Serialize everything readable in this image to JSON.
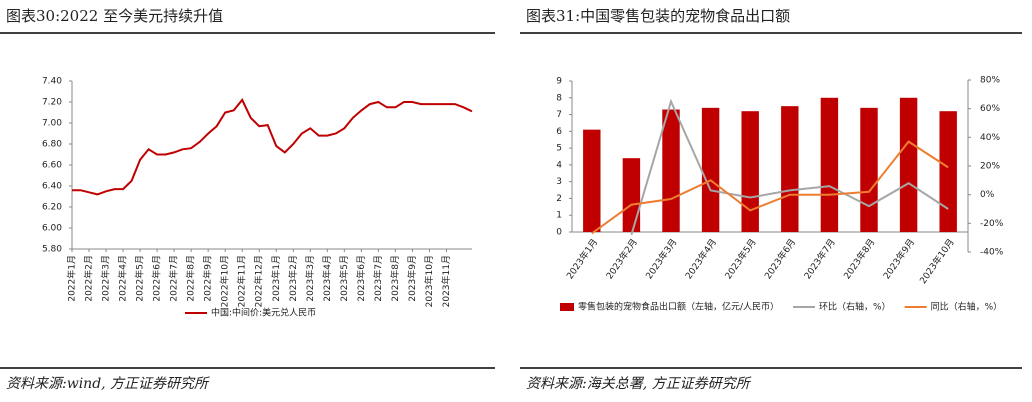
{
  "chart_data": [
    {
      "type": "line",
      "title": "图表30:2022 至今美元持续升值",
      "source": "资料来源:wind, 方正证券研究所",
      "categories": [
        "2022年1月",
        null,
        "2022年2月",
        null,
        "2022年3月",
        null,
        "2022年4月",
        null,
        "2022年5月",
        null,
        "2022年6月",
        null,
        "2022年7月",
        null,
        "2022年8月",
        null,
        "2022年9月",
        null,
        "2022年10月",
        null,
        "2022年11月",
        null,
        "2022年12月",
        null,
        "2023年1月",
        null,
        "2023年2月",
        null,
        "2023年3月",
        null,
        "2023年4月",
        null,
        "2023年5月",
        null,
        "2023年6月",
        null,
        "2023年7月",
        null,
        "2023年8月",
        null,
        "2023年9月",
        null,
        "2023年10月",
        null,
        "2023年11月",
        null,
        null,
        null
      ],
      "series": [
        {
          "name": "中国:中间价:美元兑人民币",
          "color": "#c00000",
          "values": [
            6.36,
            6.36,
            6.34,
            6.32,
            6.35,
            6.37,
            6.37,
            6.45,
            6.65,
            6.75,
            6.7,
            6.7,
            6.72,
            6.75,
            6.76,
            6.82,
            6.9,
            6.97,
            7.1,
            7.12,
            7.22,
            7.05,
            6.97,
            6.98,
            6.78,
            6.72,
            6.8,
            6.9,
            6.95,
            6.88,
            6.88,
            6.9,
            6.95,
            7.05,
            7.12,
            7.18,
            7.2,
            7.15,
            7.15,
            7.2,
            7.2,
            7.18,
            7.18,
            7.18,
            7.18,
            7.18,
            7.15,
            7.11
          ]
        }
      ],
      "ylim": [
        5.8,
        7.4
      ],
      "yticks": [
        {
          "value": 5.8,
          "label": "5.80"
        },
        {
          "value": 6.0,
          "label": "6.00"
        },
        {
          "value": 6.2,
          "label": "6.20"
        },
        {
          "value": 6.4,
          "label": "6.40"
        },
        {
          "value": 6.6,
          "label": "6.60"
        },
        {
          "value": 6.8,
          "label": "6.80"
        },
        {
          "value": 7.0,
          "label": "7.00"
        },
        {
          "value": 7.2,
          "label": "7.20"
        },
        {
          "value": 7.4,
          "label": "7.40"
        }
      ],
      "legend": "bottom"
    },
    {
      "type": "bar+line",
      "title": "图表31:中国零售包装的宠物食品出口额",
      "source": "资料来源:海关总署, 方正证券研究所",
      "categories": [
        "2023年1月",
        "2023年2月",
        "2023年3月",
        "2023年4月",
        "2023年5月",
        "2023年6月",
        "2023年7月",
        "2023年8月",
        "2023年9月",
        "2023年10月"
      ],
      "series": [
        {
          "name": "零售包装的宠物食品出口额（左轴，亿元/人民币）",
          "type": "bar",
          "color": "#c00000",
          "values": [
            6.1,
            4.4,
            7.3,
            7.4,
            7.2,
            7.5,
            8.0,
            7.4,
            8.0,
            7.2
          ]
        },
        {
          "name": "环比（右轴，%）",
          "type": "line",
          "axis": "y2",
          "color": "#a6a6a6",
          "values": [
            null,
            -28,
            65,
            3,
            -2,
            3,
            6,
            -8,
            8,
            -10
          ]
        },
        {
          "name": "同比（右轴，%）",
          "type": "line",
          "axis": "y2",
          "color": "#ed7d31",
          "values": [
            -27,
            -7,
            -3,
            10,
            -11,
            0,
            0,
            2,
            37,
            19
          ]
        }
      ],
      "ylim": [
        0,
        9
      ],
      "yticks": [
        0,
        1,
        2,
        3,
        4,
        5,
        6,
        7,
        8,
        9
      ],
      "y2lim": [
        -40,
        80
      ],
      "y2ticks": [
        {
          "value": -40,
          "label": "-40%"
        },
        {
          "value": -20,
          "label": "-20%"
        },
        {
          "value": 0,
          "label": "0%"
        },
        {
          "value": 20,
          "label": "20%"
        },
        {
          "value": 40,
          "label": "40%"
        },
        {
          "value": 60,
          "label": "60%"
        },
        {
          "value": 80,
          "label": "80%"
        }
      ],
      "legend": "bottom"
    }
  ]
}
